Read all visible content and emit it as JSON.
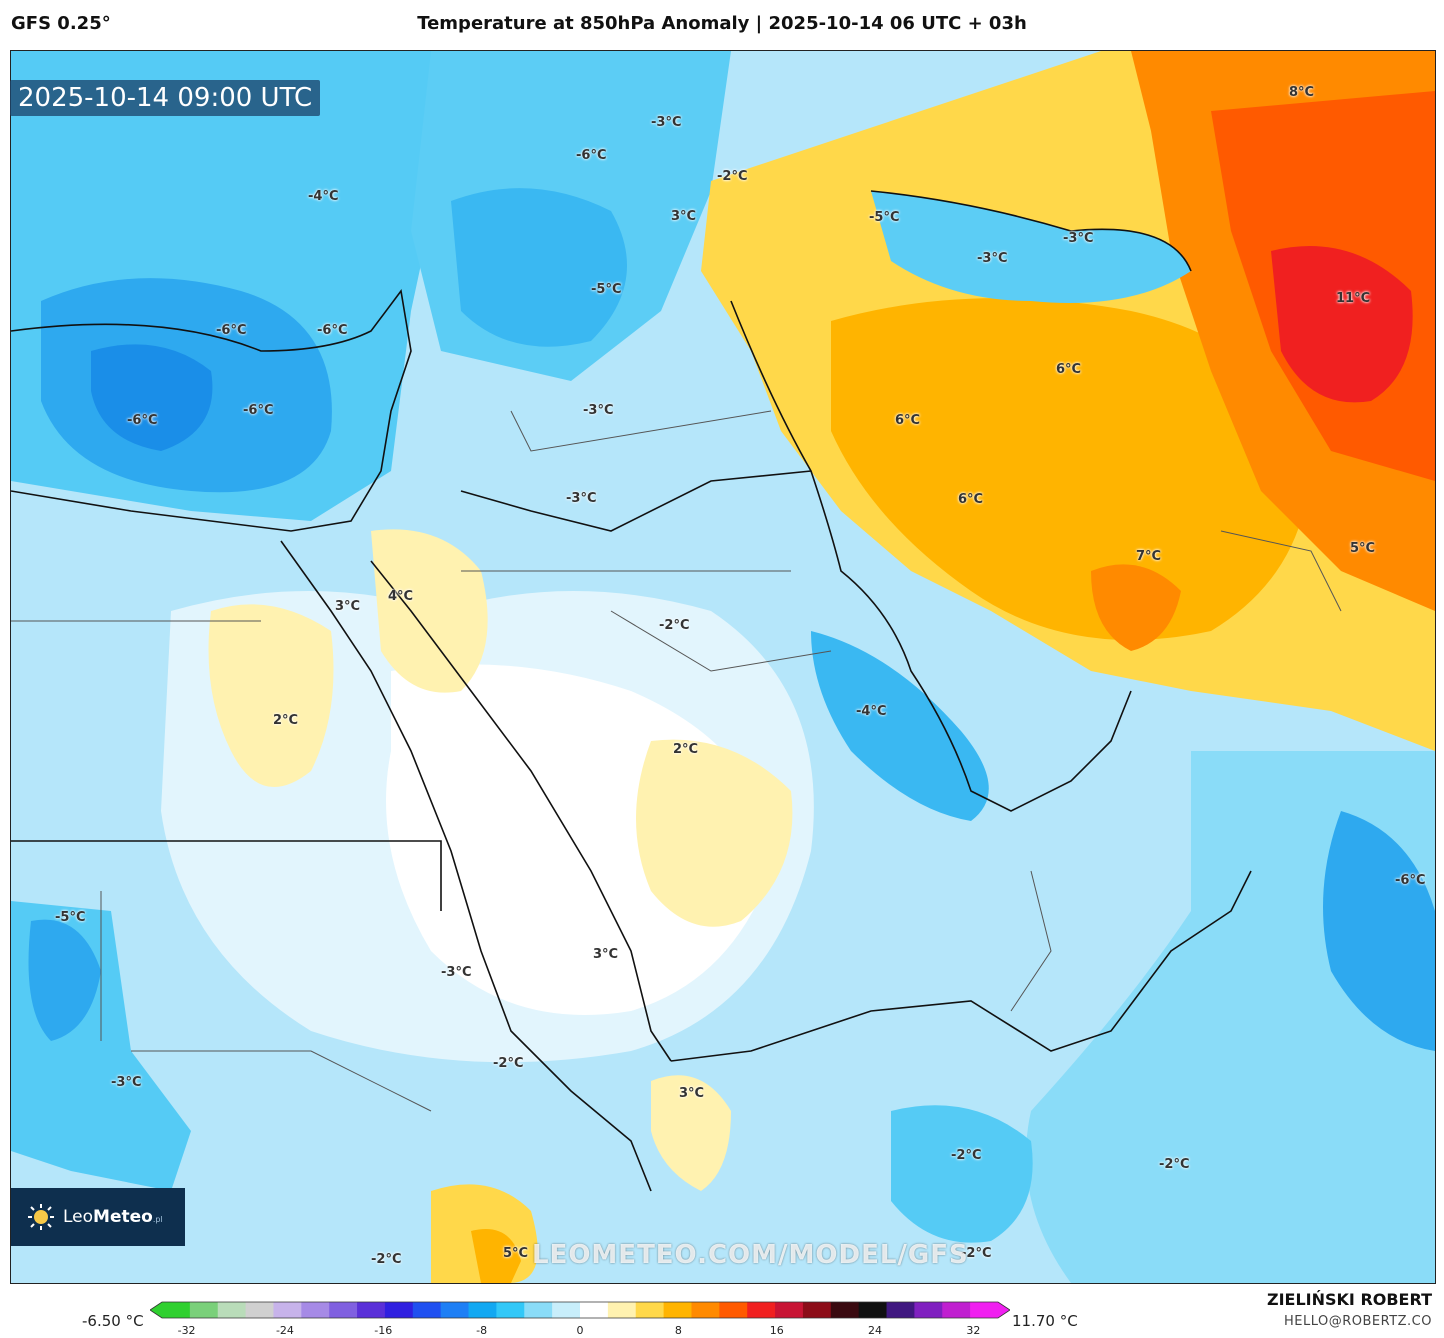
{
  "header": {
    "model": "GFS 0.25°",
    "title": "Temperature at 850hPa Anomaly | 2025-10-14 06 UTC + 03h"
  },
  "map": {
    "valid_time": "2025-10-14 09:00 UTC",
    "watermark": "LEOMETEO.COM/MODEL/GFS",
    "logo": {
      "brand_light": "Leo",
      "brand_bold": "Meteo",
      "suffix": ".pl"
    },
    "labels": [
      {
        "text": "-3°C"
      },
      {
        "text": "-6°C"
      },
      {
        "text": "-4°C"
      },
      {
        "text": "3°C"
      },
      {
        "text": "-2°C"
      },
      {
        "text": "8°C"
      },
      {
        "text": "-5°C"
      },
      {
        "text": "-3°C"
      },
      {
        "text": "-3°C"
      },
      {
        "text": "11°C"
      },
      {
        "text": "-6°C"
      },
      {
        "text": "-6°C"
      },
      {
        "text": "-5°C"
      },
      {
        "text": "-6°C"
      },
      {
        "text": "-6°C"
      },
      {
        "text": "-3°C"
      },
      {
        "text": "6°C"
      },
      {
        "text": "6°C"
      },
      {
        "text": "-3°C"
      },
      {
        "text": "6°C"
      },
      {
        "text": "7°C"
      },
      {
        "text": "5°C"
      },
      {
        "text": "3°C"
      },
      {
        "text": "4°C"
      },
      {
        "text": "-2°C"
      },
      {
        "text": "2°C"
      },
      {
        "text": "-4°C"
      },
      {
        "text": "2°C"
      },
      {
        "text": "-6°C"
      },
      {
        "text": "-5°C"
      },
      {
        "text": "-3°C"
      },
      {
        "text": "3°C"
      },
      {
        "text": "-2°C"
      },
      {
        "text": "-3°C"
      },
      {
        "text": "3°C"
      },
      {
        "text": "-2°C"
      },
      {
        "text": "-2°C"
      },
      {
        "text": "5°C"
      },
      {
        "text": "-2°C"
      },
      {
        "text": "-2°C"
      }
    ]
  },
  "legend": {
    "min_label": "-6.50 °C",
    "max_label": "11.70 °C",
    "ticks": [
      "-32",
      "-24",
      "-16",
      "-8",
      "0",
      "8",
      "16",
      "24",
      "32"
    ],
    "tick_values": [
      -32,
      -24,
      -16,
      -8,
      0,
      8,
      16,
      24,
      32
    ],
    "range": [
      -34,
      34
    ],
    "colors": [
      "#30d030",
      "#7ad07a",
      "#b9dcb9",
      "#d0d0d0",
      "#c7b3ea",
      "#a68ae6",
      "#8060e0",
      "#5a30d8",
      "#3020e0",
      "#2050f0",
      "#1e7ff5",
      "#12a8f2",
      "#32c8f8",
      "#8adcf8",
      "#c8eefb",
      "#ffffff",
      "#fff2b0",
      "#ffd84a",
      "#ffb400",
      "#ff8a00",
      "#ff5a00",
      "#f02020",
      "#c81434",
      "#8c0c18",
      "#3a0a10",
      "#101010",
      "#401880",
      "#8020c0",
      "#c020d0",
      "#f020f0"
    ]
  },
  "footer": {
    "author": "ZIELIŃSKI ROBERT",
    "email": "HELLO@ROBERTZ.CO"
  }
}
